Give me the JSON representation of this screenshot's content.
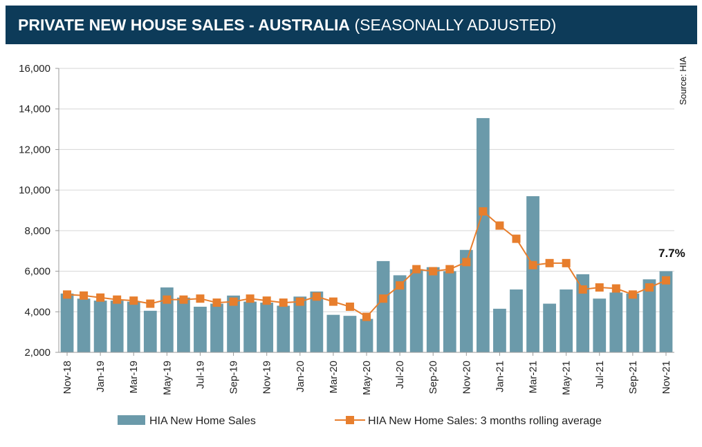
{
  "header": {
    "title": "PRIVATE NEW HOUSE SALES -  AUSTRALIA",
    "subtitle": "(SEASONALLY ADJUSTED)"
  },
  "source": "Source: HIA",
  "annotation": "7.7%",
  "colors": {
    "bar": "#6b9aaa",
    "line": "#e77e2d",
    "header_bg": "#0d3b59"
  },
  "chart_data": {
    "type": "bar",
    "title": "PRIVATE NEW HOUSE SALES - AUSTRALIA (SEASONALLY ADJUSTED)",
    "xlabel": "",
    "ylabel": "",
    "ylim": [
      2000,
      16000
    ],
    "yticks": [
      "2,000",
      "4,000",
      "6,000",
      "8,000",
      "10,000",
      "12,000",
      "14,000",
      "16,000"
    ],
    "categories": [
      "Nov-18",
      "Dec-18",
      "Jan-19",
      "Feb-19",
      "Mar-19",
      "Apr-19",
      "May-19",
      "Jun-19",
      "Jul-19",
      "Aug-19",
      "Sep-19",
      "Oct-19",
      "Nov-19",
      "Dec-19",
      "Jan-20",
      "Feb-20",
      "Mar-20",
      "Apr-20",
      "May-20",
      "Jun-20",
      "Jul-20",
      "Aug-20",
      "Sep-20",
      "Oct-20",
      "Nov-20",
      "Dec-20",
      "Jan-21",
      "Feb-21",
      "Mar-21",
      "Apr-21",
      "May-21",
      "Jun-21",
      "Jul-21",
      "Aug-21",
      "Sep-21",
      "Oct-21",
      "Nov-21"
    ],
    "xtick_labels": [
      "Nov-18",
      "Jan-19",
      "Mar-19",
      "May-19",
      "Jul-19",
      "Sep-19",
      "Nov-19",
      "Jan-20",
      "Mar-20",
      "May-20",
      "Jul-20",
      "Sep-20",
      "Nov-20",
      "Jan-21",
      "Mar-21",
      "May-21",
      "Jul-21",
      "Sep-21",
      "Nov-21"
    ],
    "series": [
      {
        "name": "HIA New Home Sales",
        "kind": "bar",
        "values": [
          4900,
          4650,
          4550,
          4550,
          4500,
          4050,
          5200,
          4700,
          4250,
          4400,
          4800,
          4500,
          4450,
          4300,
          4750,
          5000,
          3850,
          3800,
          3650,
          6500,
          5800,
          6100,
          6200,
          6000,
          7050,
          13550,
          4150,
          5100,
          9700,
          4400,
          5100,
          5850,
          4650,
          4950,
          4900,
          5600,
          6000
        ]
      },
      {
        "name": "HIA New Home Sales: 3 months rolling average",
        "kind": "line",
        "values": [
          4850,
          4800,
          4700,
          4600,
          4550,
          4400,
          4600,
          4600,
          4650,
          4450,
          4500,
          4650,
          4550,
          4450,
          4500,
          4750,
          4500,
          4250,
          3750,
          4650,
          5300,
          6100,
          6000,
          6100,
          6450,
          8950,
          8250,
          7600,
          6300,
          6400,
          6400,
          5100,
          5200,
          5150,
          4850,
          5200,
          5550
        ]
      }
    ],
    "legend": [
      "HIA New Home Sales",
      "HIA New Home Sales: 3 months rolling average"
    ],
    "legend_position": "bottom",
    "grid": true
  }
}
